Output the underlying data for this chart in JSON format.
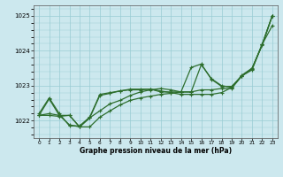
{
  "title": "",
  "xlabel": "Graphe pression niveau de la mer (hPa)",
  "xlim": [
    -0.5,
    23.5
  ],
  "ylim": [
    1021.5,
    1025.3
  ],
  "yticks": [
    1022,
    1023,
    1024,
    1025
  ],
  "xticks": [
    0,
    1,
    2,
    3,
    4,
    5,
    6,
    7,
    8,
    9,
    10,
    11,
    12,
    13,
    14,
    15,
    16,
    17,
    18,
    19,
    20,
    21,
    22,
    23
  ],
  "bg_color": "#cce8ee",
  "grid_color": "#99ccd4",
  "line_color": "#2d6e2d",
  "s1": [
    1022.2,
    1022.65,
    1022.2,
    1021.85,
    1021.85,
    1022.1,
    1022.75,
    1022.8,
    1022.85,
    1022.9,
    1022.9,
    1022.9,
    1022.85,
    1022.8,
    1022.75,
    1022.75,
    1022.75,
    1022.75,
    1022.8,
    1022.95,
    1023.3,
    1023.5,
    1024.15,
    1025.0
  ],
  "s2": [
    1022.15,
    1022.2,
    1022.15,
    1022.15,
    1021.82,
    1021.82,
    1022.1,
    1022.28,
    1022.45,
    1022.58,
    1022.65,
    1022.7,
    1022.75,
    1022.78,
    1022.82,
    1022.82,
    1023.6,
    1023.2,
    1023.0,
    1022.95,
    1023.28,
    1023.45,
    1024.18,
    1024.72
  ],
  "s3": [
    1022.15,
    1022.62,
    1022.15,
    1021.88,
    1021.82,
    1022.08,
    1022.72,
    1022.78,
    1022.85,
    1022.88,
    1022.88,
    1022.9,
    1022.82,
    1022.82,
    1022.82,
    1023.52,
    1023.62,
    1023.18,
    1022.98,
    1022.98,
    1023.28,
    1023.48,
    1024.18,
    1025.0
  ],
  "s4": [
    1022.15,
    1022.15,
    1022.12,
    1022.15,
    1021.82,
    1022.08,
    1022.28,
    1022.48,
    1022.58,
    1022.72,
    1022.82,
    1022.88,
    1022.92,
    1022.88,
    1022.82,
    1022.82,
    1022.88,
    1022.88,
    1022.92,
    1022.92,
    1023.28,
    1023.48,
    1024.18,
    1025.0
  ]
}
